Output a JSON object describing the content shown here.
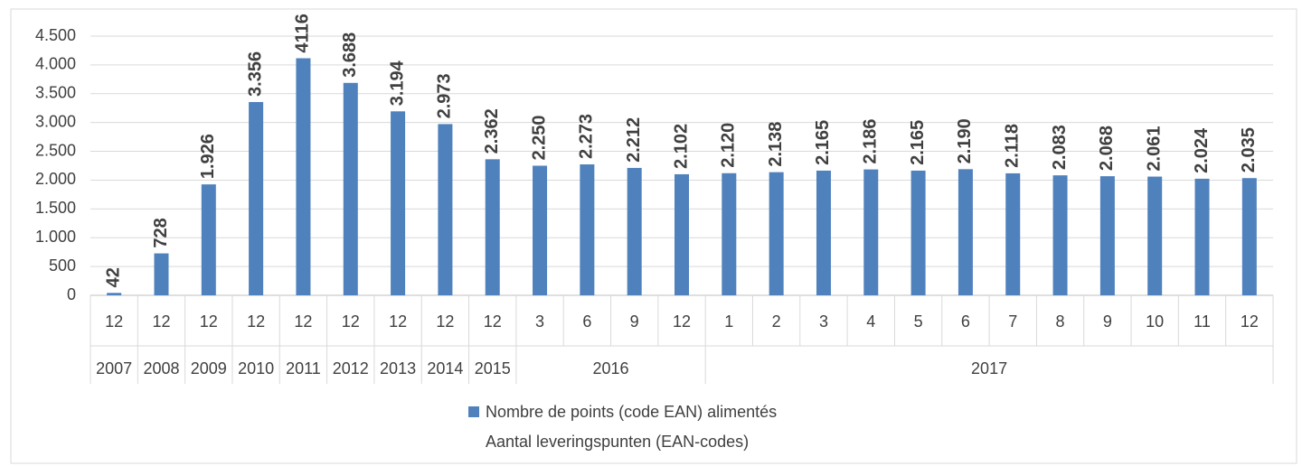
{
  "chart_data": {
    "type": "bar",
    "groups": [
      {
        "label": "2007",
        "categories": [
          "12"
        ]
      },
      {
        "label": "2008",
        "categories": [
          "12"
        ]
      },
      {
        "label": "2009",
        "categories": [
          "12"
        ]
      },
      {
        "label": "2010",
        "categories": [
          "12"
        ]
      },
      {
        "label": "2011",
        "categories": [
          "12"
        ]
      },
      {
        "label": "2012",
        "categories": [
          "12"
        ]
      },
      {
        "label": "2013",
        "categories": [
          "12"
        ]
      },
      {
        "label": "2014",
        "categories": [
          "12"
        ]
      },
      {
        "label": "2015",
        "categories": [
          "12"
        ]
      },
      {
        "label": "2016",
        "categories": [
          "3",
          "6",
          "9",
          "12"
        ]
      },
      {
        "label": "2017",
        "categories": [
          "1",
          "2",
          "3",
          "4",
          "5",
          "6",
          "7",
          "8",
          "9",
          "10",
          "11",
          "12"
        ]
      }
    ],
    "series": [
      {
        "name": "Nombre de points (code EAN) alimentés",
        "name_line2": "Aantal leveringspunten (EAN-codes)",
        "color": "#4f81bd",
        "values": [
          42,
          728,
          1926,
          3356,
          4116,
          3688,
          3194,
          2973,
          2362,
          2250,
          2273,
          2212,
          2102,
          2120,
          2138,
          2165,
          2186,
          2165,
          2190,
          2118,
          2083,
          2068,
          2061,
          2024,
          2035
        ],
        "value_labels": [
          "42",
          "728",
          "1.926",
          "3.356",
          "4116",
          "3.688",
          "3.194",
          "2.973",
          "2.362",
          "2.250",
          "2.273",
          "2.212",
          "2.102",
          "2.120",
          "2.138",
          "2.165",
          "2.186",
          "2.165",
          "2.190",
          "2.118",
          "2.083",
          "2.068",
          "2.061",
          "2.024",
          "2.035"
        ]
      }
    ],
    "ylim": [
      0,
      4500
    ],
    "yticks": [
      0,
      500,
      {
        "value": 1000,
        "label": "1.000"
      },
      {
        "value": 1500,
        "label": "1.500"
      },
      {
        "value": 2000,
        "label": "2.000"
      },
      {
        "value": 2500,
        "label": "2.500"
      },
      {
        "value": 3000,
        "label": "3.000"
      },
      {
        "value": 3500,
        "label": "3.500"
      },
      {
        "value": 4000,
        "label": "4.000"
      },
      {
        "value": 4500,
        "label": "4.500"
      }
    ],
    "grid": true,
    "legend": "bottom"
  }
}
